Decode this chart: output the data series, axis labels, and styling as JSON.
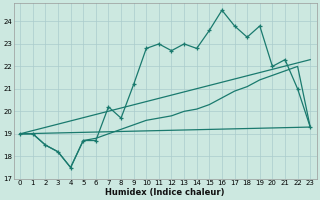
{
  "background_color": "#cce8e0",
  "grid_color": "#aacccc",
  "line_color": "#1a7a6e",
  "xlabel": "Humidex (Indice chaleur)",
  "xlim": [
    -0.5,
    23.5
  ],
  "ylim": [
    17,
    24.8
  ],
  "yticks": [
    17,
    18,
    19,
    20,
    21,
    22,
    23,
    24
  ],
  "xticks": [
    0,
    1,
    2,
    3,
    4,
    5,
    6,
    7,
    8,
    9,
    10,
    11,
    12,
    13,
    14,
    15,
    16,
    17,
    18,
    19,
    20,
    21,
    22,
    23
  ],
  "series1_x": [
    0,
    1,
    2,
    3,
    4,
    5,
    6,
    7,
    8,
    9,
    10,
    11,
    12,
    13,
    14,
    15,
    16,
    17,
    18,
    19,
    20,
    21,
    22,
    23
  ],
  "series1_y": [
    19.0,
    19.0,
    18.5,
    18.2,
    17.5,
    18.7,
    18.7,
    20.2,
    19.7,
    21.2,
    22.8,
    23.0,
    22.7,
    23.0,
    22.8,
    23.6,
    24.5,
    23.8,
    23.3,
    23.8,
    22.0,
    22.3,
    21.0,
    19.3
  ],
  "series2_x": [
    0,
    1,
    2,
    3,
    4,
    5,
    6,
    7,
    8,
    9,
    10,
    11,
    12,
    13,
    14,
    15,
    16,
    17,
    18,
    19,
    20,
    21,
    22,
    23
  ],
  "series2_y": [
    19.0,
    19.0,
    18.5,
    18.2,
    17.5,
    18.7,
    18.8,
    19.0,
    19.2,
    19.4,
    19.6,
    19.7,
    19.8,
    20.0,
    20.1,
    20.3,
    20.6,
    20.9,
    21.1,
    21.4,
    21.6,
    21.8,
    22.0,
    19.3
  ],
  "series3_x": [
    0,
    23
  ],
  "series3_y": [
    19.0,
    22.3
  ],
  "series4_x": [
    0,
    23
  ],
  "series4_y": [
    19.0,
    19.3
  ]
}
